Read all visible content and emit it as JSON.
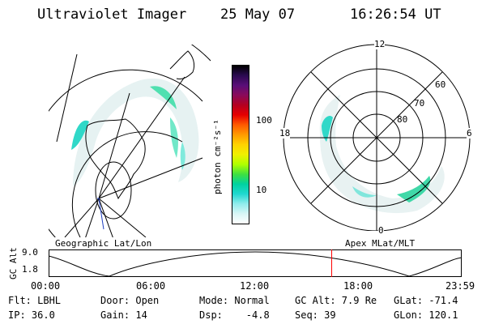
{
  "header": {
    "instrument": "Ultraviolet Imager",
    "date": "25 May 07",
    "time": "16:26:54 UT"
  },
  "left_panel": {
    "caption": "Geographic Lat/Lon"
  },
  "colorbar": {
    "label": "photon cm⁻²s⁻¹",
    "ticks": [
      "100",
      "10"
    ],
    "colors": [
      "#000000",
      "#2a0a50",
      "#5a0e78",
      "#8a0a5a",
      "#b40020",
      "#e60000",
      "#ff5a00",
      "#ff9a00",
      "#ffd200",
      "#f0f000",
      "#b0ff00",
      "#40e040",
      "#00d2a0",
      "#20d8d0",
      "#90ecec",
      "#d8f6f6",
      "#ffffff"
    ]
  },
  "right_panel": {
    "caption": "Apex MLat/MLT",
    "mlt_labels": {
      "top": "12",
      "left": "18",
      "right": "6",
      "bottom": "0"
    },
    "lat_labels": [
      "60",
      "70",
      "80"
    ]
  },
  "timeline": {
    "ylabel": "GC Alt",
    "y_ticks": [
      "9.0",
      "1.8"
    ],
    "x_ticks": [
      "00:00",
      "06:00",
      "12:00",
      "18:00",
      "23:59"
    ],
    "current_marker_utc": "16:26:54",
    "marker_color": "#ff0000"
  },
  "footer": {
    "filter": "Flt: LBHL",
    "door": "Door: Open",
    "mode": "Mode: Normal",
    "gc_alt": "GC Alt: 7.9 Re",
    "glat": "GLat: -71.4",
    "ip": "IP: 36.0",
    "gain": "Gain: 14",
    "dsp": "Dsp:    -4.8",
    "seq": "Seq: 39",
    "glon": "GLon: 120.1"
  }
}
